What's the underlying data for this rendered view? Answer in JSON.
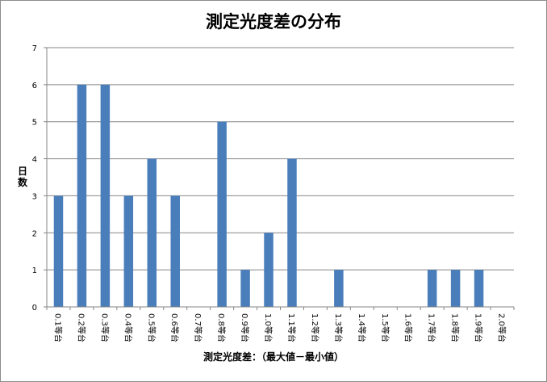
{
  "chart_data": {
    "type": "bar",
    "title": "測定光度差の分布",
    "xlabel": "測定光度差：（最大値－最小値）",
    "ylabel": "日数",
    "ylim": [
      0,
      7
    ],
    "yticks": [
      0,
      1,
      2,
      3,
      4,
      5,
      6,
      7
    ],
    "grid": true,
    "legend": "none",
    "bar_color": "#4a7ebb",
    "categories": [
      "0.1等台",
      "0.2等台",
      "0.3等台",
      "0.4等台",
      "0.5等台",
      "0.6等台",
      "0.7等台",
      "0.8等台",
      "0.9等台",
      "1.0等台",
      "1.1等台",
      "1.2等台",
      "1.3等台",
      "1.4等台",
      "1.5等台",
      "1.6等台",
      "1.7等台",
      "1.8等台",
      "1.9等台",
      "2.0等台"
    ],
    "values": [
      3,
      6,
      6,
      3,
      4,
      3,
      0,
      5,
      1,
      2,
      4,
      0,
      1,
      0,
      0,
      0,
      1,
      1,
      1,
      0
    ]
  }
}
